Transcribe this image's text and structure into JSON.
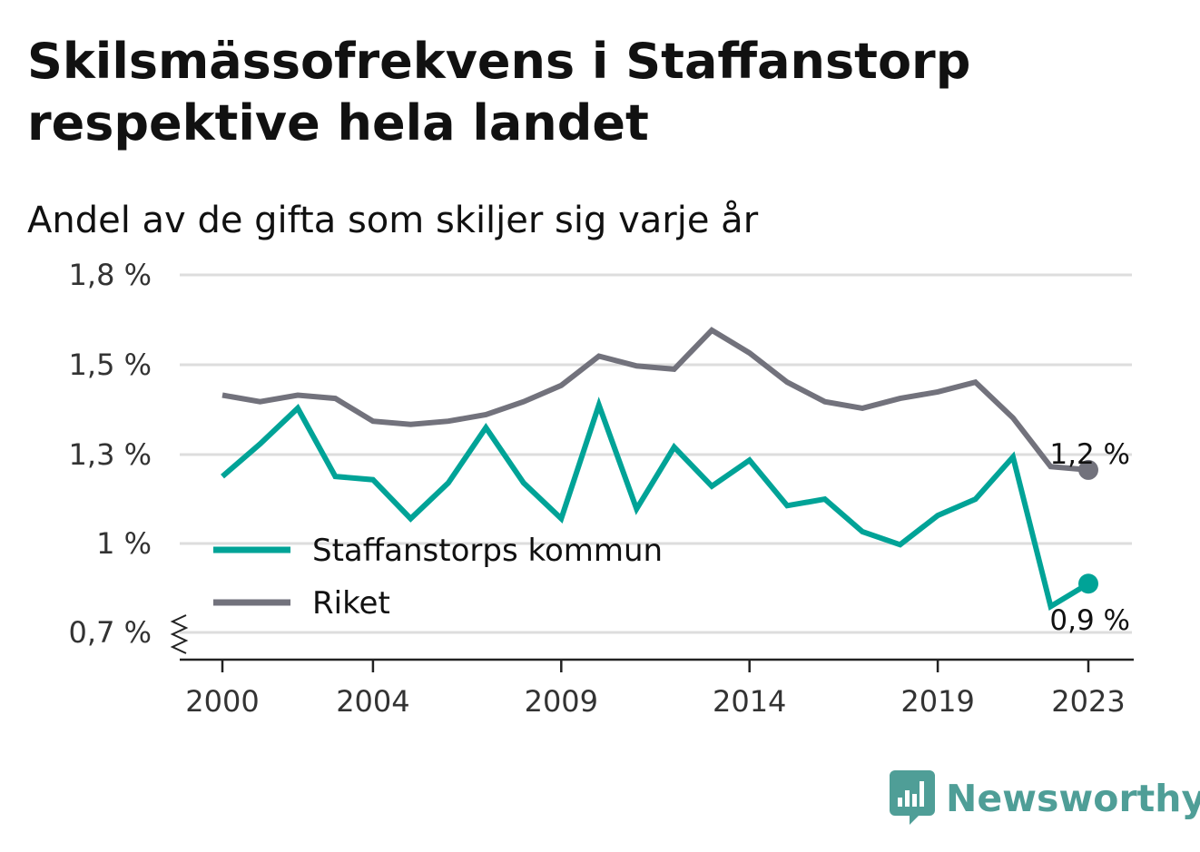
{
  "title": "Skilsmässofrekvens i Staffanstorp respektive hela landet",
  "subtitle": "Andel av de gifta som skiljer sig varje år",
  "brand": "Newsworthy",
  "colors": {
    "staffanstorp": "#00a397",
    "riket": "#72727c",
    "grid": "#dddddd",
    "brand": "#4f9e97"
  },
  "chart_data": {
    "type": "line",
    "x": [
      2000,
      2001,
      2002,
      2003,
      2004,
      2005,
      2006,
      2007,
      2008,
      2009,
      2010,
      2011,
      2012,
      2013,
      2014,
      2015,
      2016,
      2017,
      2018,
      2019,
      2020,
      2021,
      2022,
      2023
    ],
    "x_ticks": [
      "2000",
      "2004",
      "2009",
      "2014",
      "2019",
      "2023"
    ],
    "y_ticks": [
      "0,7 %",
      "1 %",
      "1,3 %",
      "1,5 %",
      "1,8 %"
    ],
    "ylim": [
      0.7,
      1.8
    ],
    "axis_break": true,
    "grid": true,
    "legend_position": "lower-left",
    "series": [
      {
        "name": "Staffanstorps kommun",
        "values": [
          1.18,
          1.28,
          1.39,
          1.18,
          1.17,
          1.05,
          1.16,
          1.33,
          1.16,
          1.05,
          1.4,
          1.08,
          1.27,
          1.15,
          1.23,
          1.09,
          1.11,
          1.01,
          0.97,
          1.06,
          1.11,
          1.24,
          0.78,
          0.85
        ],
        "end_label": "0,9 %"
      },
      {
        "name": "Riket",
        "values": [
          1.43,
          1.41,
          1.43,
          1.42,
          1.35,
          1.34,
          1.35,
          1.37,
          1.41,
          1.46,
          1.55,
          1.52,
          1.51,
          1.63,
          1.56,
          1.47,
          1.41,
          1.39,
          1.42,
          1.44,
          1.47,
          1.36,
          1.21,
          1.2
        ],
        "end_label": "1,2 %"
      }
    ]
  }
}
